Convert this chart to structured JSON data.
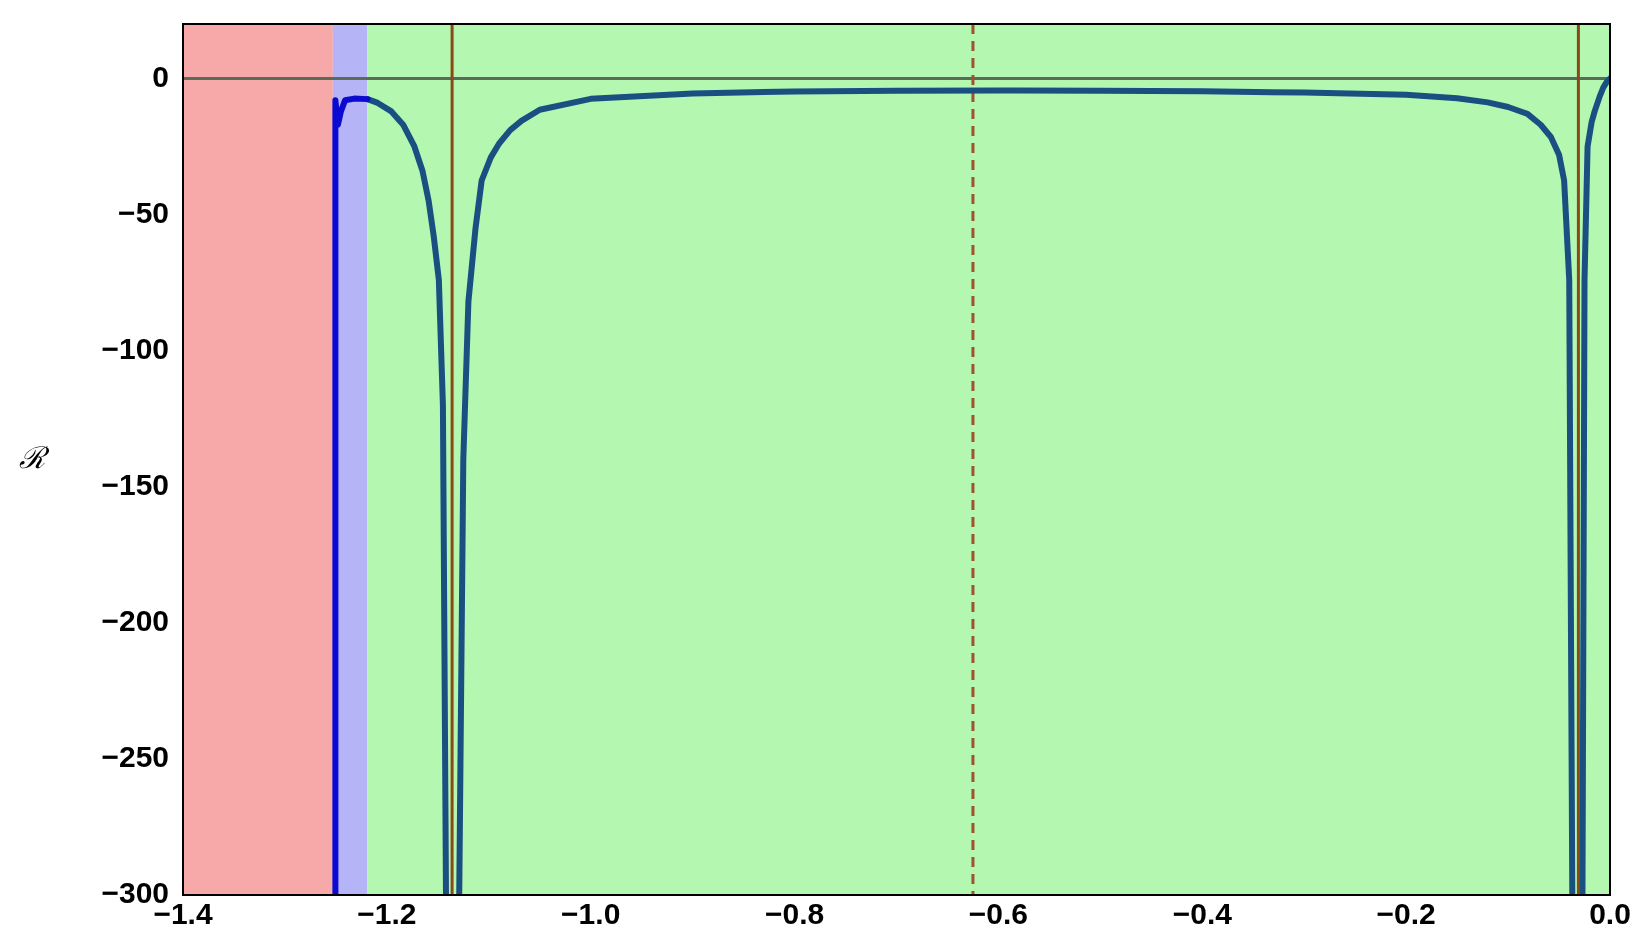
{
  "chart_data": {
    "type": "line",
    "ylabel": "ℛ",
    "xlim": [
      -1.4,
      0
    ],
    "ylim": [
      -300,
      20
    ],
    "xticks": [
      {
        "value": -1.4,
        "label": "−1.4"
      },
      {
        "value": -1.2,
        "label": "−1.2"
      },
      {
        "value": -1.0,
        "label": "−1.0"
      },
      {
        "value": -0.8,
        "label": "−0.8"
      },
      {
        "value": -0.6,
        "label": "−0.6"
      },
      {
        "value": -0.4,
        "label": "−0.4"
      },
      {
        "value": -0.2,
        "label": "−0.2"
      },
      {
        "value": 0,
        "label": "0.0"
      }
    ],
    "yticks": [
      {
        "value": -300,
        "label": "−300"
      },
      {
        "value": -250,
        "label": "−250"
      },
      {
        "value": -200,
        "label": "−200"
      },
      {
        "value": -150,
        "label": "−150"
      },
      {
        "value": -100,
        "label": "−100"
      },
      {
        "value": -50,
        "label": "−50"
      },
      0
    ],
    "grid": false,
    "legend": false,
    "marker": "none",
    "line_style": "solid",
    "bands": [
      {
        "axis": "x",
        "from": -1.4,
        "to": -1.253,
        "color": "#f7a8a8"
      },
      {
        "axis": "x",
        "from": -1.253,
        "to": -1.219,
        "color": "#b4b4f7"
      },
      {
        "axis": "x",
        "from": -1.219,
        "to": 0,
        "color": "#b4f7b0"
      }
    ],
    "ref_lines": [
      {
        "axis": "y",
        "value": 0,
        "color": "#5a6b5a"
      },
      {
        "axis": "x",
        "value": -1.136,
        "color": "#8b4a14",
        "line_style": "solid"
      },
      {
        "axis": "x",
        "value": -0.031,
        "color": "#8b4a14",
        "line_style": "solid"
      },
      {
        "axis": "x",
        "value": -0.625,
        "color": "#a0522d",
        "line_style": "dashed"
      }
    ],
    "series": [
      {
        "type": "line",
        "color": "#0a0ad0",
        "x": [
          -1.2505,
          -1.2505,
          -1.248,
          -1.245,
          -1.241,
          -1.232,
          -1.219
        ],
        "values": [
          -300,
          -8,
          -17,
          -12,
          -8,
          -7.4,
          -7.6
        ]
      },
      {
        "type": "line",
        "color": "#1a4f82",
        "x": [
          -1.219,
          -1.209,
          -1.196,
          -1.184,
          -1.173,
          -1.165,
          -1.159,
          -1.154,
          -1.149,
          -1.145,
          -1.142
        ],
        "values": [
          -7.6,
          -9,
          -12,
          -17,
          -25,
          -34,
          -45,
          -58,
          -74,
          -120,
          -300
        ]
      },
      {
        "type": "line",
        "color": "#1a4f82",
        "x": [
          -1.129,
          -1.125,
          -1.12,
          -1.113,
          -1.107,
          -1.098,
          -1.09,
          -1.079,
          -1.068,
          -1.05,
          -1.0,
          -0.9,
          -0.8,
          -0.7,
          -0.6,
          -0.5,
          -0.4,
          -0.3,
          -0.2,
          -0.15,
          -0.12,
          -0.1,
          -0.081,
          -0.068,
          -0.058,
          -0.05,
          -0.045,
          -0.04,
          -0.037
        ],
        "values": [
          -300,
          -140,
          -82,
          -55,
          -37.5,
          -29,
          -24,
          -19,
          -15.6,
          -11.5,
          -7.5,
          -5.5,
          -4.8,
          -4.5,
          -4.4,
          -4.5,
          -4.7,
          -5.2,
          -6,
          -7.3,
          -8.8,
          -10.5,
          -13,
          -17,
          -21.5,
          -28,
          -37.5,
          -74,
          -300
        ]
      },
      {
        "type": "line",
        "color": "#1a4f82",
        "x": [
          -0.027,
          -0.025,
          -0.022,
          -0.018,
          -0.015,
          -0.01,
          -0.0065,
          -0.003,
          0
        ],
        "values": [
          -300,
          -74,
          -25,
          -16,
          -12,
          -6.5,
          -3.3,
          -1.2,
          0
        ]
      }
    ]
  }
}
